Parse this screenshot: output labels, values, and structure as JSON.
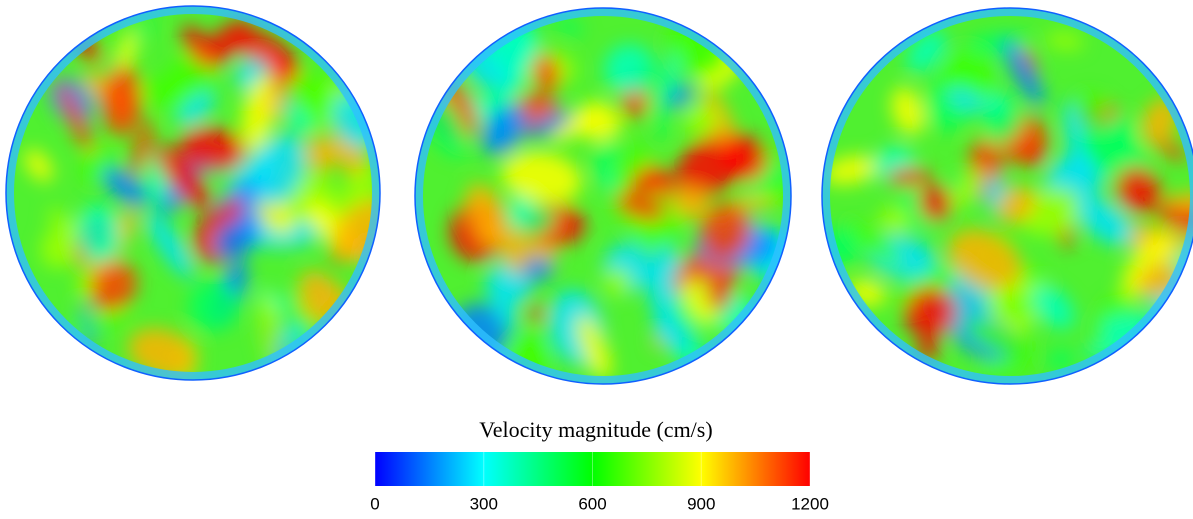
{
  "chart_data": {
    "type": "contour",
    "colorbar": {
      "label": "Velocity magnitude (cm/s)",
      "lim": [
        0,
        1200
      ],
      "ticks": [
        0,
        300,
        600,
        900,
        1200
      ],
      "colors": [
        "#0000ff",
        "#00ffff",
        "#00ff00",
        "#ffff00",
        "#ff0000"
      ]
    }
  }
}
